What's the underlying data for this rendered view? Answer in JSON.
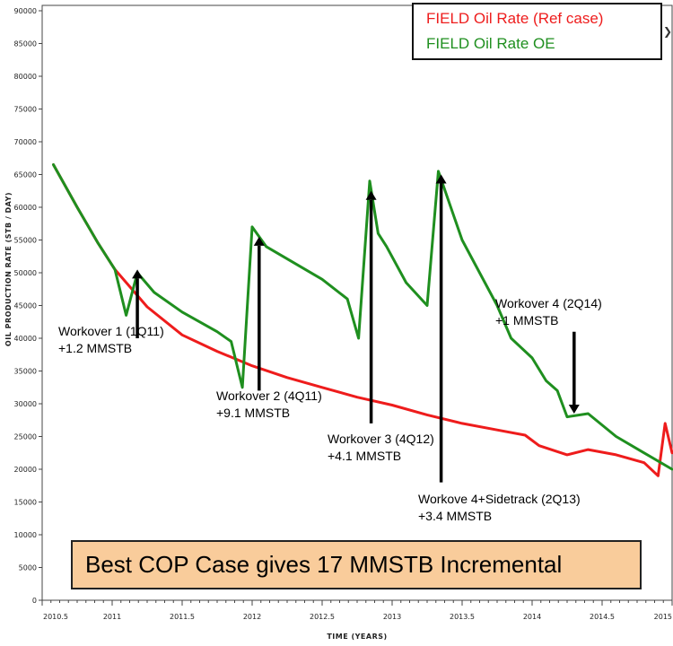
{
  "chart_data": {
    "type": "line",
    "ylabel": "OIL PRODUCTION RATE (STB / DAY)",
    "xlabel": "TIME (YEARS)",
    "xlim": [
      2010.5,
      2015
    ],
    "ylim": [
      0,
      90000
    ],
    "xticks": [
      "2010.5",
      "2011",
      "2011.5",
      "2012",
      "2012.5",
      "2013",
      "2013.5",
      "2014",
      "2014.5",
      "2015"
    ],
    "xtick_values": [
      2010.5,
      2011,
      2011.5,
      2012,
      2012.5,
      2013,
      2013.5,
      2014,
      2014.5,
      2015
    ],
    "yticks": [
      "0",
      "5000",
      "10000",
      "15000",
      "20000",
      "25000",
      "30000",
      "35000",
      "40000",
      "45000",
      "50000",
      "55000",
      "60000",
      "65000",
      "70000",
      "75000",
      "80000",
      "85000",
      "90000"
    ],
    "ytick_values": [
      0,
      5000,
      10000,
      15000,
      20000,
      25000,
      30000,
      35000,
      40000,
      45000,
      50000,
      55000,
      60000,
      65000,
      70000,
      75000,
      80000,
      85000,
      90000
    ],
    "grid": false,
    "legend_position": "top-right",
    "series": [
      {
        "name": "FIELD Oil Rate (Ref case)",
        "color": "#ee1c1c",
        "x": [
          2010.58,
          2010.75,
          2010.9,
          2011.02,
          2011.25,
          2011.5,
          2011.75,
          2012.0,
          2012.25,
          2012.5,
          2012.75,
          2013.0,
          2013.25,
          2013.5,
          2013.75,
          2013.95,
          2014.05,
          2014.25,
          2014.4,
          2014.6,
          2014.8,
          2014.9,
          2014.95,
          2015.0
        ],
        "y": [
          66500,
          60000,
          54500,
          50500,
          44800,
          40500,
          38000,
          35800,
          34000,
          32500,
          31000,
          29800,
          28300,
          27000,
          26000,
          25200,
          23600,
          22200,
          23000,
          22200,
          21000,
          19000,
          27000,
          22500
        ]
      },
      {
        "name": "FIELD Oil Rate OE",
        "color": "#1f8f1f",
        "x": [
          2010.58,
          2010.75,
          2010.9,
          2011.02,
          2011.1,
          2011.18,
          2011.3,
          2011.5,
          2011.75,
          2011.85,
          2011.93,
          2012.0,
          2012.1,
          2012.3,
          2012.5,
          2012.68,
          2012.76,
          2012.84,
          2012.9,
          2012.96,
          2013.1,
          2013.25,
          2013.33,
          2013.5,
          2013.75,
          2013.85,
          2014.0,
          2014.1,
          2014.18,
          2014.25,
          2014.4,
          2014.6,
          2014.8,
          2015.0
        ],
        "y": [
          66500,
          60000,
          54500,
          50500,
          43500,
          50000,
          47000,
          44000,
          41000,
          39500,
          32500,
          57000,
          54000,
          51500,
          49000,
          46000,
          40000,
          64000,
          56000,
          54000,
          48500,
          45000,
          65500,
          55000,
          45000,
          40000,
          37000,
          33500,
          32000,
          28000,
          28500,
          25000,
          22500,
          20000
        ]
      }
    ],
    "annotations": [
      {
        "line1": "Workover 1 (1Q11)",
        "line2": "+1.2 MMSTB",
        "arrow_x": 2011.18,
        "arrow_from": 40000,
        "arrow_to": 50500,
        "direction": "up"
      },
      {
        "line1": "Workover 2 (4Q11)",
        "line2": "+9.1 MMSTB",
        "arrow_x": 2012.05,
        "arrow_from": 32000,
        "arrow_to": 55500,
        "direction": "up"
      },
      {
        "line1": "Workover 3 (4Q12)",
        "line2": "+4.1 MMSTB",
        "arrow_x": 2012.85,
        "arrow_from": 27000,
        "arrow_to": 62500,
        "direction": "up"
      },
      {
        "line1": "Workove 4+Sidetrack (2Q13)",
        "line2": "+3.4 MMSTB",
        "arrow_x": 2013.35,
        "arrow_from": 18000,
        "arrow_to": 65000,
        "direction": "up"
      },
      {
        "line1": "Workover 4 (2Q14)",
        "line2": "+1 MMSTB",
        "arrow_x": 2014.3,
        "arrow_from": 41000,
        "arrow_to": 28500,
        "direction": "down"
      }
    ],
    "callout": "Best COP Case gives 17 MMSTB Incremental"
  }
}
